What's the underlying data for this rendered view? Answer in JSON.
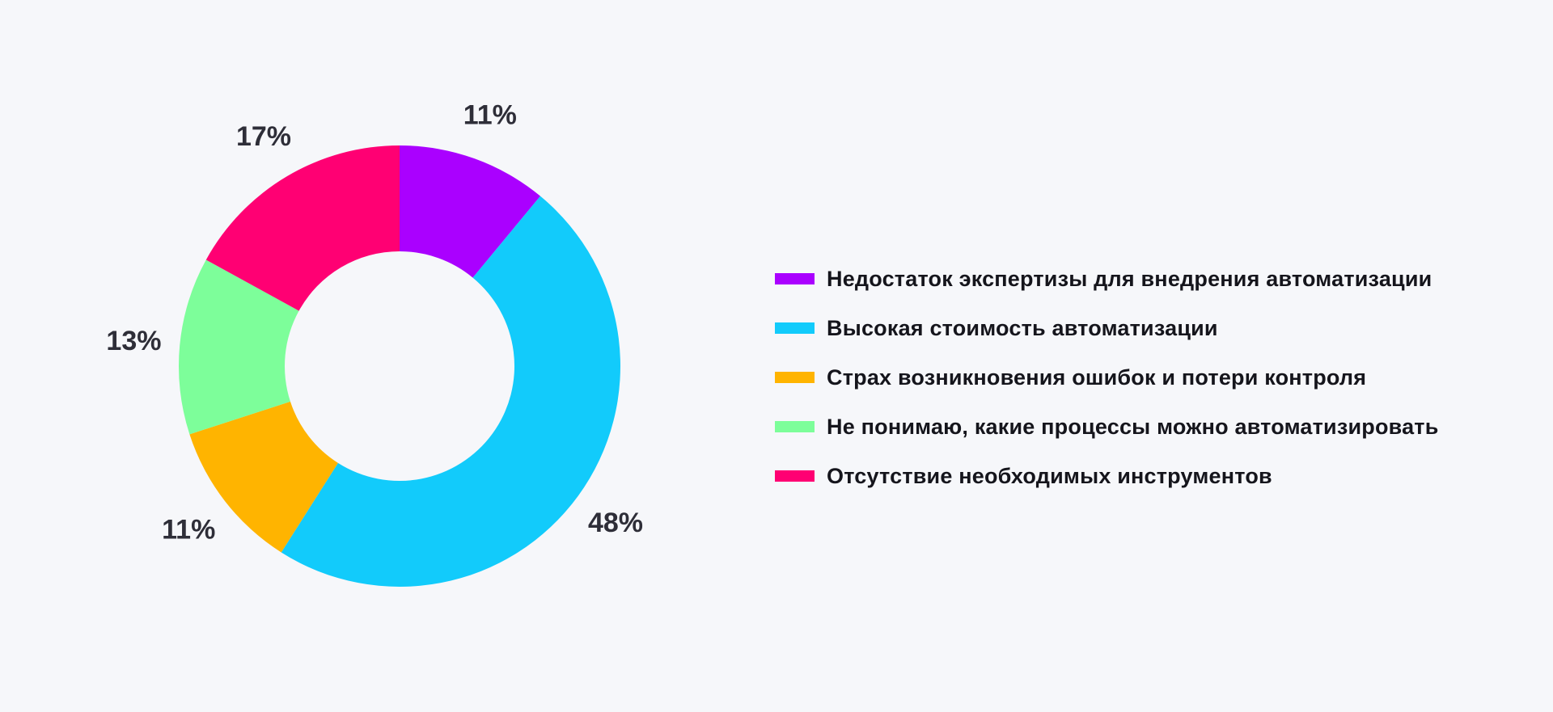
{
  "chart_data": {
    "type": "pie",
    "donut": true,
    "categories": [
      "Недостаток экспертизы для внедрения автоматизации",
      "Высокая стоимость автоматизации",
      "Страх возникновения ошибок и потери контроля",
      "Не понимаю, какие процессы можно автоматизировать",
      "Отсутствие необходимых инструментов"
    ],
    "values": [
      11,
      48,
      11,
      13,
      17
    ],
    "value_labels": [
      "11%",
      "48%",
      "11%",
      "13%",
      "17%"
    ],
    "colors": [
      "#aa00ff",
      "#12cbfb",
      "#ffb400",
      "#7dfe9a",
      "#ff0073"
    ],
    "start_angle_deg": 0,
    "direction": "clockwise",
    "legend_position": "right"
  }
}
